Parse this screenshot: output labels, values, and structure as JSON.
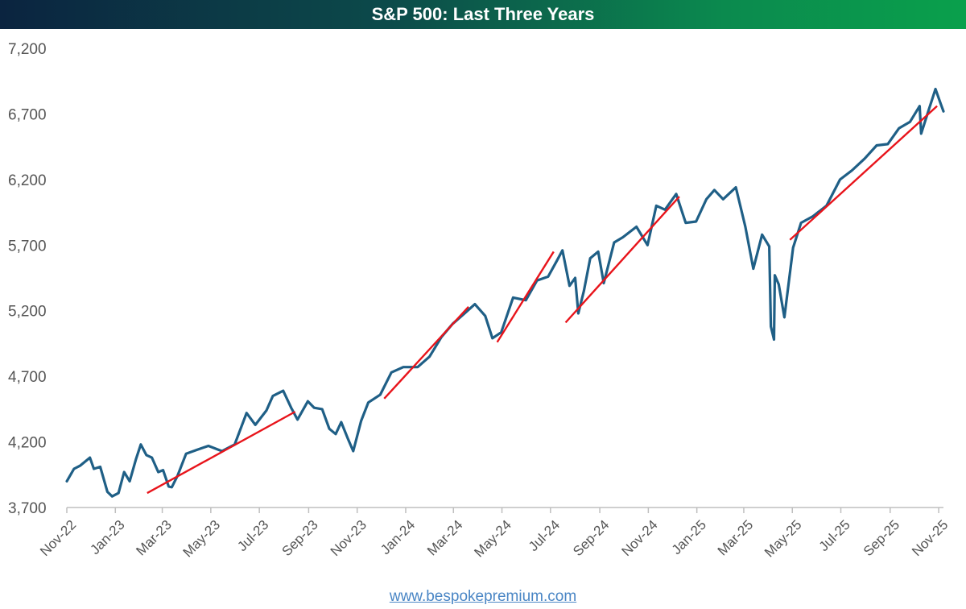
{
  "title": "S&P 500: Last Three Years",
  "source_link": "www.bespokepremium.com",
  "colors": {
    "series": "#1f5f86",
    "trend": "#e8141b",
    "axis": "#bfbfbf",
    "tick_text": "#555555"
  },
  "chart_data": {
    "type": "line",
    "title": "S&P 500: Last Three Years",
    "xlabel": "",
    "ylabel": "",
    "grid": false,
    "legend": "none",
    "ylim": [
      3700,
      7200
    ],
    "yticks": [
      3700,
      4200,
      4700,
      5200,
      5700,
      6200,
      6700,
      7200
    ],
    "ytick_labels": [
      "3,700",
      "4,200",
      "4,700",
      "5,200",
      "5,700",
      "6,200",
      "6,700",
      "7,200"
    ],
    "xlim": [
      "2022-11-01",
      "2025-11-07"
    ],
    "xticks": [
      "2022-11-01",
      "2023-01-01",
      "2023-03-01",
      "2023-05-01",
      "2023-07-01",
      "2023-09-01",
      "2023-11-01",
      "2024-01-01",
      "2024-03-01",
      "2024-05-01",
      "2024-07-01",
      "2024-09-01",
      "2024-11-01",
      "2025-01-01",
      "2025-03-01",
      "2025-05-01",
      "2025-07-01",
      "2025-09-01",
      "2025-11-01"
    ],
    "xtick_labels": [
      "Nov-22",
      "Jan-23",
      "Mar-23",
      "May-23",
      "Jul-23",
      "Sep-23",
      "Nov-23",
      "Jan-24",
      "Mar-24",
      "May-24",
      "Jul-24",
      "Sep-24",
      "Nov-24",
      "Jan-25",
      "Mar-25",
      "May-25",
      "Jul-25",
      "Sep-25",
      "Nov-25"
    ],
    "series": [
      {
        "x": [
          "2022-11-01",
          "2022-11-10",
          "2022-11-18",
          "2022-11-30",
          "2022-12-05",
          "2022-12-13",
          "2022-12-22",
          "2022-12-28",
          "2023-01-05",
          "2023-01-12",
          "2023-01-19",
          "2023-01-27",
          "2023-02-02",
          "2023-02-09",
          "2023-02-16",
          "2023-02-24",
          "2023-03-02",
          "2023-03-09",
          "2023-03-13",
          "2023-03-20",
          "2023-03-31",
          "2023-04-14",
          "2023-04-28",
          "2023-05-15",
          "2023-05-31",
          "2023-06-15",
          "2023-06-26",
          "2023-07-10",
          "2023-07-18",
          "2023-07-31",
          "2023-08-10",
          "2023-08-18",
          "2023-08-31",
          "2023-09-08",
          "2023-09-18",
          "2023-09-27",
          "2023-10-05",
          "2023-10-12",
          "2023-10-20",
          "2023-10-27",
          "2023-11-06",
          "2023-11-15",
          "2023-11-30",
          "2023-12-14",
          "2023-12-29",
          "2024-01-16",
          "2024-01-31",
          "2024-02-15",
          "2024-02-29",
          "2024-03-15",
          "2024-03-28",
          "2024-04-10",
          "2024-04-19",
          "2024-04-30",
          "2024-05-15",
          "2024-05-31",
          "2024-06-14",
          "2024-06-28",
          "2024-07-09",
          "2024-07-16",
          "2024-07-25",
          "2024-08-01",
          "2024-08-05",
          "2024-08-12",
          "2024-08-20",
          "2024-08-30",
          "2024-09-06",
          "2024-09-19",
          "2024-09-30",
          "2024-10-17",
          "2024-10-31",
          "2024-11-11",
          "2024-11-22",
          "2024-12-06",
          "2024-12-18",
          "2024-12-31",
          "2025-01-13",
          "2025-01-23",
          "2025-02-03",
          "2025-02-19",
          "2025-03-03",
          "2025-03-13",
          "2025-03-24",
          "2025-04-02",
          "2025-04-04",
          "2025-04-08",
          "2025-04-09",
          "2025-04-14",
          "2025-04-21",
          "2025-05-02",
          "2025-05-12",
          "2025-05-27",
          "2025-06-13",
          "2025-06-30",
          "2025-07-15",
          "2025-07-31",
          "2025-08-15",
          "2025-08-29",
          "2025-09-12",
          "2025-09-26",
          "2025-10-08",
          "2025-10-10",
          "2025-10-20",
          "2025-10-28",
          "2025-11-04",
          "2025-11-07"
        ],
        "values": [
          3900,
          3995,
          4020,
          4080,
          3995,
          4010,
          3820,
          3785,
          3810,
          3970,
          3900,
          4070,
          4180,
          4100,
          4080,
          3970,
          3985,
          3860,
          3855,
          3940,
          4110,
          4140,
          4170,
          4130,
          4180,
          4420,
          4330,
          4440,
          4550,
          4590,
          4460,
          4370,
          4510,
          4460,
          4450,
          4300,
          4260,
          4350,
          4230,
          4130,
          4360,
          4500,
          4560,
          4730,
          4770,
          4770,
          4850,
          5000,
          5100,
          5180,
          5250,
          5160,
          4990,
          5035,
          5300,
          5280,
          5430,
          5460,
          5580,
          5660,
          5390,
          5450,
          5180,
          5350,
          5600,
          5650,
          5410,
          5720,
          5760,
          5840,
          5700,
          6000,
          5970,
          6090,
          5870,
          5880,
          6050,
          6120,
          6050,
          6140,
          5840,
          5520,
          5780,
          5690,
          5080,
          4980,
          5470,
          5400,
          5150,
          5680,
          5870,
          5920,
          6000,
          6200,
          6270,
          6360,
          6460,
          6470,
          6590,
          6640,
          6760,
          6550,
          6740,
          6890,
          6770,
          6720
        ]
      }
    ],
    "trend_lines": [
      {
        "x": [
          "2023-02-10",
          "2023-08-15"
        ],
        "y": [
          3810,
          4430
        ]
      },
      {
        "x": [
          "2023-12-05",
          "2024-03-20"
        ],
        "y": [
          4530,
          5230
        ]
      },
      {
        "x": [
          "2024-04-25",
          "2024-07-05"
        ],
        "y": [
          4960,
          5650
        ]
      },
      {
        "x": [
          "2024-07-20",
          "2024-12-10"
        ],
        "y": [
          5110,
          6070
        ]
      },
      {
        "x": [
          "2025-04-28",
          "2025-10-30"
        ],
        "y": [
          5740,
          6760
        ]
      }
    ]
  }
}
